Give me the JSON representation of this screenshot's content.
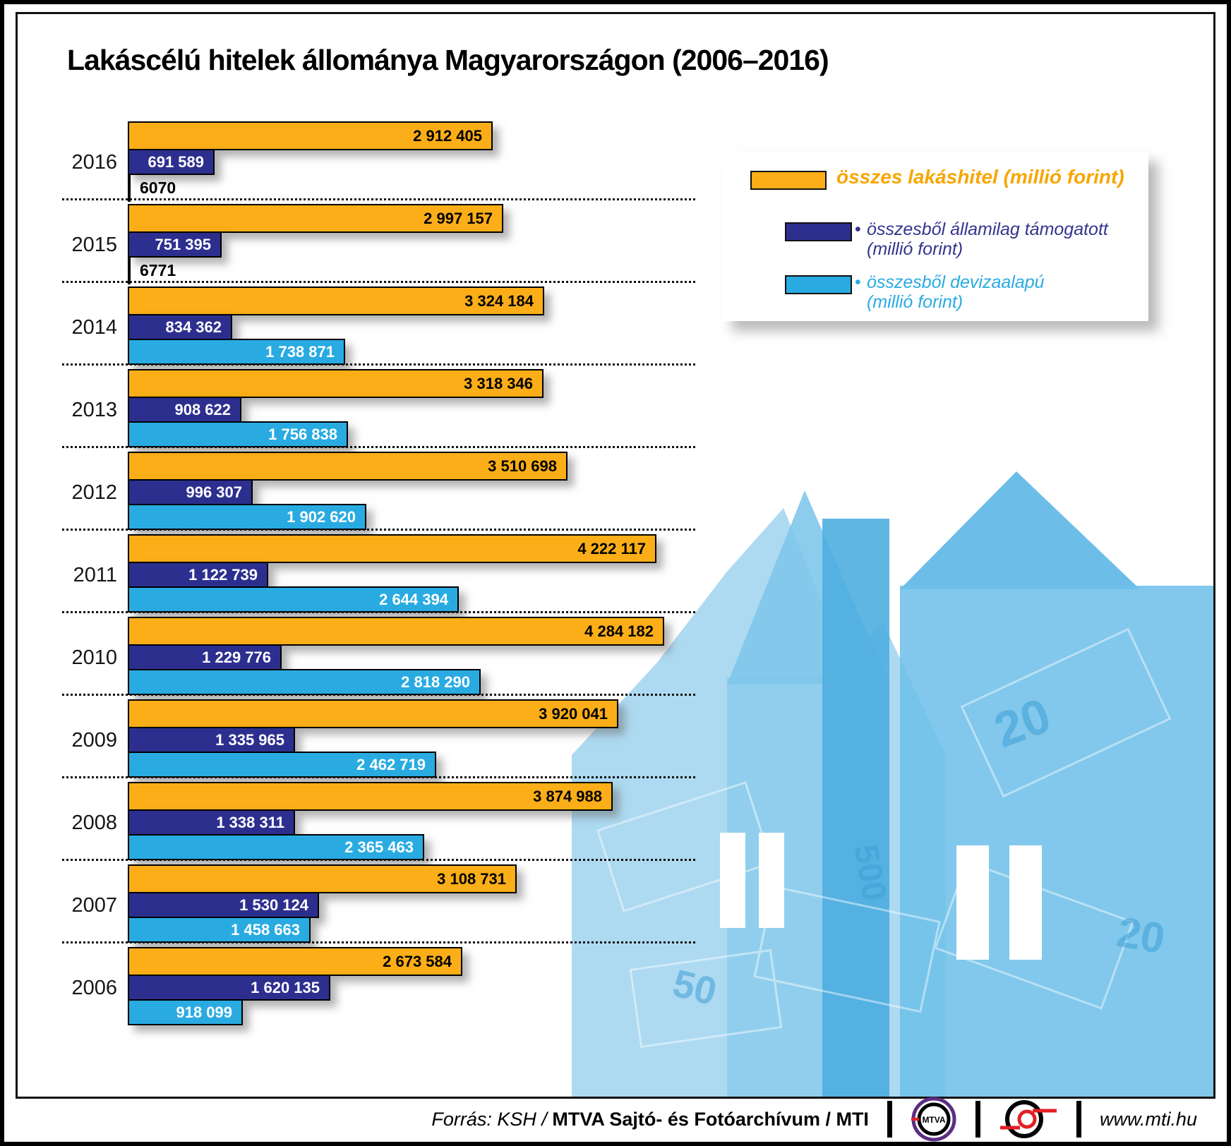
{
  "title": "Lakáscélú hitelek állománya Magyarországon (2006–2016)",
  "legend": {
    "total_label": "összes lakáshitel (millió forint)",
    "state_bullet": "•",
    "state_label": "összesből államilag támogatott",
    "state_label2": "(millió forint)",
    "fx_bullet": "•",
    "fx_label": "összesből devizaalapú",
    "fx_label2": "(millió forint)"
  },
  "colors": {
    "total": "#FBAE17",
    "state": "#2D2F8F",
    "fx": "#29ABE2"
  },
  "chart_data": {
    "type": "bar",
    "orientation": "horizontal",
    "title": "Lakáscélú hitelek állománya Magyarországon (2006–2016)",
    "unit": "millió forint",
    "categories": [
      "2016",
      "2015",
      "2014",
      "2013",
      "2012",
      "2011",
      "2010",
      "2009",
      "2008",
      "2007",
      "2006"
    ],
    "xlim": [
      0,
      4284182
    ],
    "grid": "dotted separators between year groups",
    "legend_position": "top-right",
    "series": [
      {
        "name": "összes lakáshitel (millió forint)",
        "color": "#FBAE17",
        "values": [
          2912405,
          2997157,
          3324184,
          3318346,
          3510698,
          4222117,
          4284182,
          3920041,
          3874988,
          3108731,
          2673584
        ],
        "labels": [
          "2 912 405",
          "2 997 157",
          "3 324 184",
          "3 318 346",
          "3 510 698",
          "4 222 117",
          "4 284 182",
          "3 920 041",
          "3 874 988",
          "3 108 731",
          "2 673 584"
        ]
      },
      {
        "name": "összesből államilag támogatott (millió forint)",
        "color": "#2D2F8F",
        "values": [
          691589,
          751395,
          834362,
          908622,
          996307,
          1122739,
          1229776,
          1335965,
          1338311,
          1530124,
          1620135
        ],
        "labels": [
          "691 589",
          "751 395",
          "834 362",
          "908 622",
          "996 307",
          "1 122 739",
          "1 229 776",
          "1 335 965",
          "1 338 311",
          "1 530 124",
          "1 620 135"
        ]
      },
      {
        "name": "összesből devizaalapú (millió forint)",
        "color": "#29ABE2",
        "values": [
          6070,
          6771,
          1738871,
          1756838,
          1902620,
          2644394,
          2818290,
          2462719,
          2365463,
          1458663,
          918099
        ],
        "labels": [
          "6070",
          "6771",
          "1 738 871",
          "1 756 838",
          "1 902 620",
          "2 644 394",
          "2 818 290",
          "2 462 719",
          "2 365 463",
          "1 458 663",
          "918 099"
        ]
      }
    ]
  },
  "footer": {
    "source_prefix": "Forrás: KSH / ",
    "source_bold": "MTVA Sajtó- és Fotóarchívum / MTI",
    "mtva_logo_text": "MTVA",
    "website": "www.mti.hu"
  }
}
